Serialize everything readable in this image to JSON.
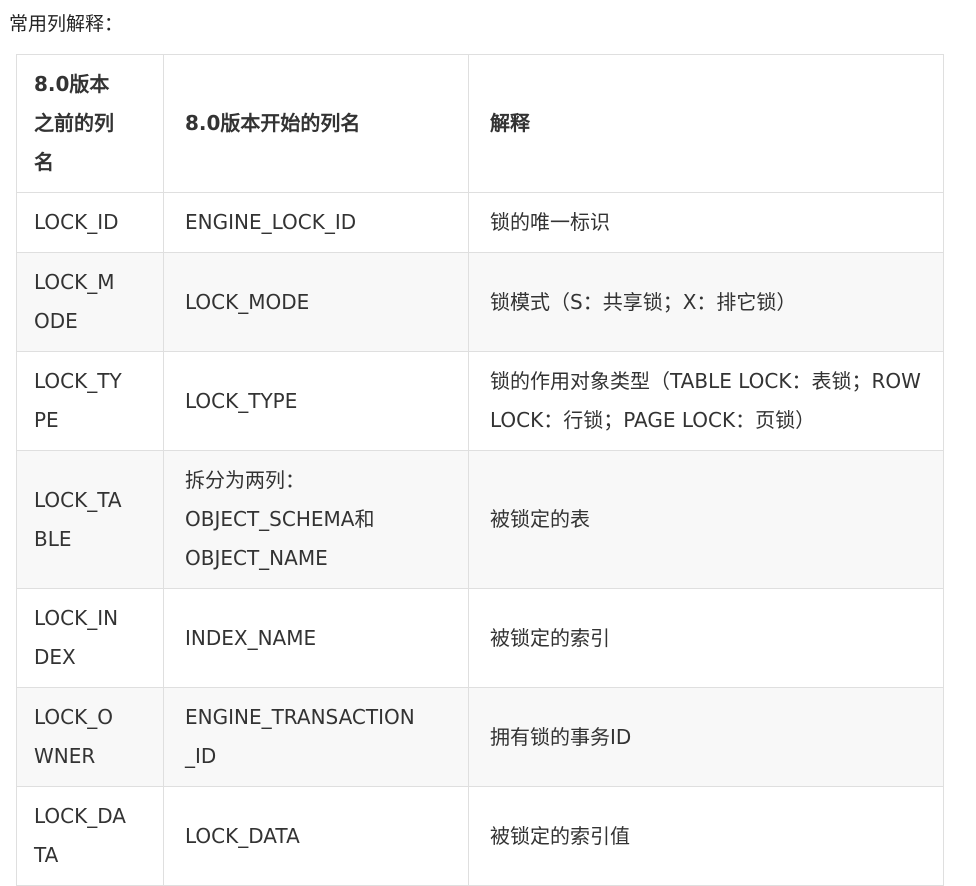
{
  "page": {
    "title": "常用列解释："
  },
  "colors": {
    "text": "#333333",
    "title": "#262626",
    "border": "#dfdfdf",
    "stripe": "#f8f8f8",
    "background": "#ffffff"
  },
  "table": {
    "headers": [
      {
        "label": "8.0版本之前的列名"
      },
      {
        "label": "8.0版本开始的列名"
      },
      {
        "label": "解释"
      }
    ],
    "rows": [
      {
        "old": "LOCK_ID",
        "new": "ENGINE_LOCK_ID",
        "desc": "锁的唯一标识"
      },
      {
        "old": "LOCK_MODE",
        "new": "LOCK_MODE",
        "desc": "锁模式（S：共享锁；X：排它锁）"
      },
      {
        "old": "LOCK_TYPE",
        "new": "LOCK_TYPE",
        "desc": "锁的作用对象类型（TABLE LOCK：表锁；ROW LOCK：行锁；PAGE LOCK：页锁）"
      },
      {
        "old": "LOCK_TABLE",
        "new": "拆分为两列：\nOBJECT_SCHEMA和OBJECT_NAME",
        "desc": "被锁定的表"
      },
      {
        "old": "LOCK_INDEX",
        "new": "INDEX_NAME",
        "desc": "被锁定的索引"
      },
      {
        "old": "LOCK_OWNER",
        "new": "ENGINE_TRANSACTION_ID",
        "desc": "拥有锁的事务ID"
      },
      {
        "old": "LOCK_DATA",
        "new": "LOCK_DATA",
        "desc": "被锁定的索引值"
      }
    ]
  }
}
